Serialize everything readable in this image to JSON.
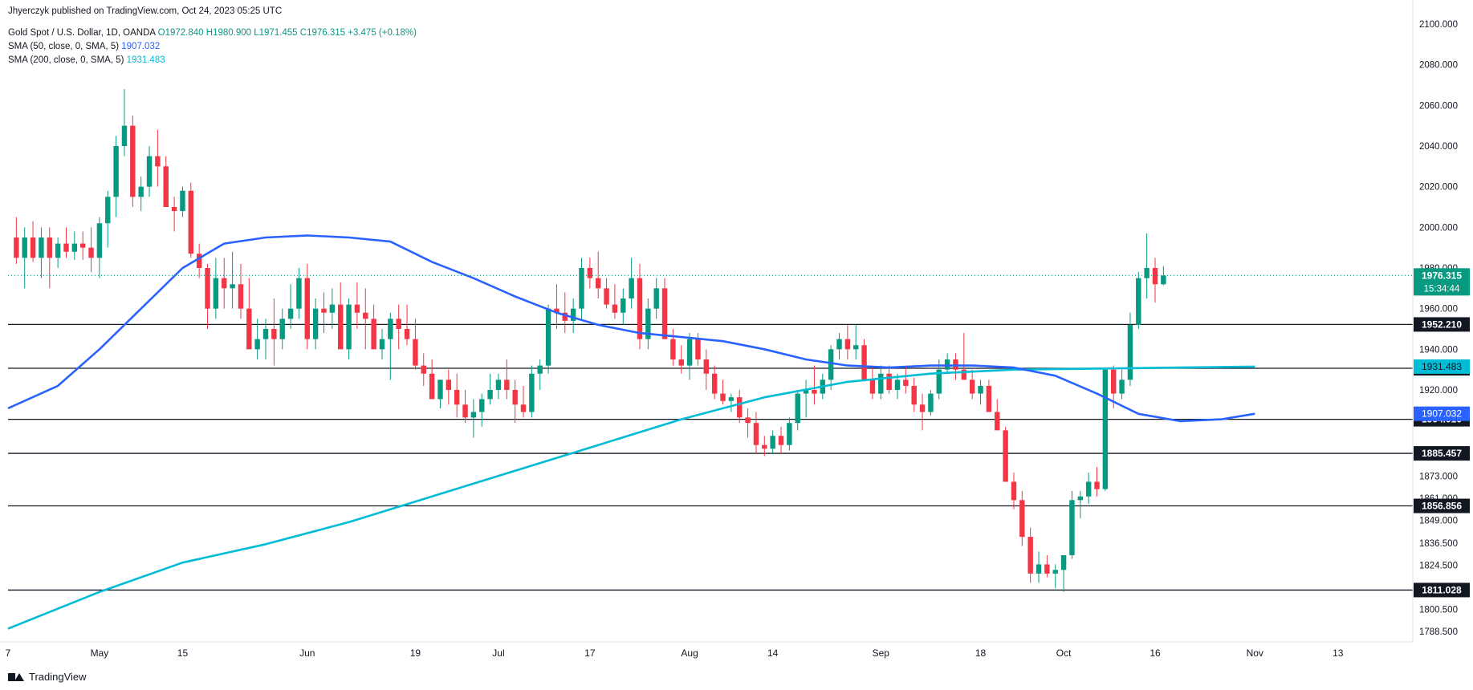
{
  "header": {
    "publisher": "Jhyerczyk published on TradingView.com, Oct 24, 2023 05:25 UTC",
    "symbol": "Gold Spot / U.S. Dollar, 1D, OANDA",
    "ohlc": "O1972.840  H1980.900  L1971.455  C1976.315  +3.475 (+0.18%)",
    "sma50_label": "SMA (50, close, 0, SMA, 5)",
    "sma50_value": "1907.032",
    "sma200_label": "SMA (200, close, 0, SMA, 5)",
    "sma200_value": "1931.483"
  },
  "footer": {
    "brand": "TradingView"
  },
  "colors": {
    "up": "#089981",
    "down": "#f23645",
    "sma50": "#2962ff",
    "sma200": "#00bcd4",
    "current": "#089981",
    "hline": "#131722"
  },
  "chart_data": {
    "type": "candlestick",
    "y_axis": {
      "min": 1785,
      "max": 2105,
      "tick_labels": [
        "2100.000",
        "2080.000",
        "2060.000",
        "2040.000",
        "2020.000",
        "2000.000",
        "1980.000",
        "1960.000",
        "1940.000",
        "1920.000",
        "1873.000",
        "1861.000",
        "1849.000",
        "1836.500",
        "1824.500",
        "1800.500",
        "1788.500"
      ],
      "tick_values": [
        2100,
        2080,
        2060,
        2040,
        2020,
        2000,
        1980,
        1960,
        1940,
        1920,
        1873,
        1861,
        1849,
        1836.5,
        1824.5,
        1800.5,
        1788.5
      ]
    },
    "x_axis": {
      "labels": [
        {
          "label": "7",
          "index": -1
        },
        {
          "label": "May",
          "index": 10
        },
        {
          "label": "15",
          "index": 20
        },
        {
          "label": "Jun",
          "index": 35
        },
        {
          "label": "19",
          "index": 48
        },
        {
          "label": "Jul",
          "index": 58
        },
        {
          "label": "17",
          "index": 69
        },
        {
          "label": "Aug",
          "index": 81
        },
        {
          "label": "14",
          "index": 91
        },
        {
          "label": "Sep",
          "index": 104
        },
        {
          "label": "18",
          "index": 116
        },
        {
          "label": "Oct",
          "index": 126
        },
        {
          "label": "16",
          "index": 137
        },
        {
          "label": "Nov",
          "index": 149
        },
        {
          "label": "13",
          "index": 159
        }
      ],
      "index_count": 169
    },
    "horizontal_levels": [
      {
        "label": "1952.210",
        "value": 1952.21
      },
      {
        "label": "1930.644",
        "value": 1930.644
      },
      {
        "label": "1904.010",
        "value": 1904.01
      },
      {
        "label": "1885.457",
        "value": 1885.457
      },
      {
        "label": "1856.856",
        "value": 1856.856
      },
      {
        "label": "1811.028",
        "value": 1811.028
      }
    ],
    "current_price": {
      "label": "1976.315",
      "countdown": "15:34:44",
      "value": 1976.315
    },
    "sma50_marker": {
      "label": "1907.032",
      "value": 1907.032
    },
    "sma200_marker": {
      "label": "1931.483",
      "value": 1931.483
    },
    "candles": [
      [
        1995,
        2005,
        1982,
        1985
      ],
      [
        1985,
        2000,
        1970,
        1995
      ],
      [
        1995,
        2003,
        1983,
        1985
      ],
      [
        1985,
        2000,
        1975,
        1995
      ],
      [
        1995,
        2000,
        1970,
        1985
      ],
      [
        1985,
        1995,
        1980,
        1992
      ],
      [
        1992,
        2000,
        1985,
        1988
      ],
      [
        1988,
        1998,
        1984,
        1992
      ],
      [
        1992,
        1998,
        1984,
        1990
      ],
      [
        1990,
        2000,
        1978,
        1985
      ],
      [
        1985,
        2005,
        1975,
        2002
      ],
      [
        2002,
        2018,
        1990,
        2015
      ],
      [
        2015,
        2045,
        2005,
        2040
      ],
      [
        2040,
        2068,
        2035,
        2050
      ],
      [
        2050,
        2055,
        2010,
        2015
      ],
      [
        2015,
        2025,
        2008,
        2020
      ],
      [
        2020,
        2040,
        2015,
        2035
      ],
      [
        2035,
        2048,
        2020,
        2030
      ],
      [
        2030,
        2035,
        2010,
        2010
      ],
      [
        2010,
        2015,
        1998,
        2008
      ],
      [
        2008,
        2020,
        2005,
        2018
      ],
      [
        2018,
        2022,
        1985,
        1987
      ],
      [
        1987,
        1992,
        1975,
        1980
      ],
      [
        1980,
        1982,
        1950,
        1960
      ],
      [
        1960,
        1985,
        1955,
        1975
      ],
      [
        1975,
        1985,
        1960,
        1970
      ],
      [
        1970,
        1988,
        1960,
        1972
      ],
      [
        1972,
        1982,
        1955,
        1960
      ],
      [
        1960,
        1975,
        1940,
        1940
      ],
      [
        1940,
        1955,
        1935,
        1945
      ],
      [
        1945,
        1955,
        1935,
        1950
      ],
      [
        1950,
        1965,
        1932,
        1945
      ],
      [
        1945,
        1960,
        1940,
        1955
      ],
      [
        1955,
        1972,
        1950,
        1960
      ],
      [
        1960,
        1980,
        1955,
        1975
      ],
      [
        1975,
        1982,
        1940,
        1945
      ],
      [
        1945,
        1965,
        1940,
        1960
      ],
      [
        1960,
        1968,
        1948,
        1958
      ],
      [
        1958,
        1970,
        1950,
        1962
      ],
      [
        1962,
        1973,
        1940,
        1940
      ],
      [
        1940,
        1965,
        1935,
        1962
      ],
      [
        1962,
        1973,
        1950,
        1958
      ],
      [
        1958,
        1970,
        1940,
        1955
      ],
      [
        1955,
        1962,
        1940,
        1940
      ],
      [
        1940,
        1950,
        1935,
        1945
      ],
      [
        1945,
        1958,
        1925,
        1955
      ],
      [
        1955,
        1962,
        1940,
        1950
      ],
      [
        1950,
        1962,
        1942,
        1945
      ],
      [
        1945,
        1955,
        1930,
        1932
      ],
      [
        1932,
        1938,
        1922,
        1928
      ],
      [
        1928,
        1935,
        1915,
        1915
      ],
      [
        1915,
        1925,
        1910,
        1925
      ],
      [
        1925,
        1930,
        1912,
        1920
      ],
      [
        1920,
        1928,
        1905,
        1912
      ],
      [
        1912,
        1920,
        1902,
        1905
      ],
      [
        1905,
        1915,
        1894,
        1908
      ],
      [
        1908,
        1918,
        1900,
        1915
      ],
      [
        1915,
        1928,
        1912,
        1920
      ],
      [
        1920,
        1928,
        1915,
        1925
      ],
      [
        1925,
        1935,
        1915,
        1920
      ],
      [
        1920,
        1925,
        1902,
        1912
      ],
      [
        1912,
        1922,
        1905,
        1908
      ],
      [
        1908,
        1932,
        1905,
        1928
      ],
      [
        1928,
        1935,
        1920,
        1932
      ],
      [
        1932,
        1962,
        1928,
        1960
      ],
      [
        1960,
        1972,
        1950,
        1958
      ],
      [
        1958,
        1968,
        1948,
        1954
      ],
      [
        1954,
        1965,
        1948,
        1960
      ],
      [
        1960,
        1985,
        1955,
        1980
      ],
      [
        1980,
        1985,
        1970,
        1975
      ],
      [
        1975,
        1988,
        1965,
        1970
      ],
      [
        1970,
        1975,
        1960,
        1962
      ],
      [
        1962,
        1972,
        1955,
        1958
      ],
      [
        1958,
        1970,
        1952,
        1965
      ],
      [
        1965,
        1985,
        1960,
        1975
      ],
      [
        1975,
        1982,
        1940,
        1945
      ],
      [
        1945,
        1965,
        1940,
        1960
      ],
      [
        1960,
        1975,
        1955,
        1970
      ],
      [
        1970,
        1975,
        1945,
        1945
      ],
      [
        1945,
        1950,
        1932,
        1935
      ],
      [
        1935,
        1942,
        1928,
        1932
      ],
      [
        1932,
        1948,
        1925,
        1945
      ],
      [
        1945,
        1948,
        1932,
        1935
      ],
      [
        1935,
        1940,
        1920,
        1928
      ],
      [
        1928,
        1932,
        1915,
        1918
      ],
      [
        1918,
        1925,
        1912,
        1914
      ],
      [
        1914,
        1918,
        1908,
        1916
      ],
      [
        1916,
        1920,
        1902,
        1905
      ],
      [
        1905,
        1910,
        1894,
        1902
      ],
      [
        1902,
        1908,
        1885,
        1890
      ],
      [
        1890,
        1895,
        1884,
        1888
      ],
      [
        1888,
        1898,
        1885,
        1895
      ],
      [
        1895,
        1900,
        1885,
        1890
      ],
      [
        1890,
        1905,
        1887,
        1902
      ],
      [
        1902,
        1920,
        1898,
        1918
      ],
      [
        1918,
        1925,
        1905,
        1920
      ],
      [
        1920,
        1932,
        1912,
        1918
      ],
      [
        1918,
        1928,
        1915,
        1925
      ],
      [
        1925,
        1942,
        1920,
        1940
      ],
      [
        1940,
        1948,
        1935,
        1945
      ],
      [
        1945,
        1952,
        1935,
        1940
      ],
      [
        1940,
        1952,
        1935,
        1942
      ],
      [
        1942,
        1945,
        1925,
        1925
      ],
      [
        1925,
        1932,
        1915,
        1918
      ],
      [
        1918,
        1932,
        1915,
        1928
      ],
      [
        1928,
        1932,
        1918,
        1920
      ],
      [
        1920,
        1928,
        1915,
        1925
      ],
      [
        1925,
        1932,
        1918,
        1922
      ],
      [
        1922,
        1926,
        1908,
        1912
      ],
      [
        1912,
        1918,
        1898,
        1908
      ],
      [
        1908,
        1920,
        1906,
        1918
      ],
      [
        1918,
        1935,
        1915,
        1930
      ],
      [
        1930,
        1938,
        1928,
        1935
      ],
      [
        1935,
        1938,
        1925,
        1930
      ],
      [
        1930,
        1948,
        1925,
        1925
      ],
      [
        1925,
        1930,
        1915,
        1918
      ],
      [
        1918,
        1925,
        1912,
        1922
      ],
      [
        1922,
        1925,
        1908,
        1908
      ],
      [
        1908,
        1915,
        1898,
        1898
      ],
      [
        1898,
        1900,
        1870,
        1870
      ],
      [
        1870,
        1875,
        1855,
        1860
      ],
      [
        1860,
        1865,
        1835,
        1840
      ],
      [
        1840,
        1845,
        1815,
        1820
      ],
      [
        1820,
        1832,
        1815,
        1825
      ],
      [
        1825,
        1830,
        1818,
        1820
      ],
      [
        1820,
        1825,
        1812,
        1822
      ],
      [
        1822,
        1830,
        1810,
        1830
      ],
      [
        1830,
        1865,
        1828,
        1860
      ],
      [
        1860,
        1865,
        1850,
        1862
      ],
      [
        1862,
        1875,
        1858,
        1870
      ],
      [
        1870,
        1878,
        1862,
        1866
      ],
      [
        1866,
        1930,
        1865,
        1930
      ],
      [
        1930,
        1932,
        1910,
        1918
      ],
      [
        1918,
        1930,
        1915,
        1925
      ],
      [
        1925,
        1958,
        1922,
        1952
      ],
      [
        1952,
        1978,
        1950,
        1975
      ],
      [
        1975,
        1997,
        1965,
        1980
      ],
      [
        1980,
        1985,
        1963,
        1972
      ],
      [
        1972,
        1980.9,
        1971.455,
        1976.315
      ]
    ],
    "sma50": [
      [
        -1,
        1910
      ],
      [
        5,
        1922
      ],
      [
        10,
        1940
      ],
      [
        15,
        1960
      ],
      [
        20,
        1980
      ],
      [
        25,
        1992
      ],
      [
        30,
        1995
      ],
      [
        35,
        1996
      ],
      [
        40,
        1995
      ],
      [
        45,
        1993
      ],
      [
        50,
        1983
      ],
      [
        55,
        1975
      ],
      [
        60,
        1966
      ],
      [
        65,
        1958
      ],
      [
        70,
        1952
      ],
      [
        75,
        1948
      ],
      [
        80,
        1946
      ],
      [
        85,
        1944
      ],
      [
        90,
        1940
      ],
      [
        95,
        1935
      ],
      [
        100,
        1932
      ],
      [
        105,
        1931
      ],
      [
        110,
        1932
      ],
      [
        115,
        1932
      ],
      [
        120,
        1931
      ],
      [
        125,
        1927
      ],
      [
        130,
        1918
      ],
      [
        135,
        1907
      ],
      [
        140,
        1903
      ],
      [
        145,
        1904
      ],
      [
        149,
        1907.032
      ]
    ],
    "sma200": [
      [
        -1,
        1790
      ],
      [
        10,
        1810
      ],
      [
        20,
        1826
      ],
      [
        30,
        1836
      ],
      [
        40,
        1848
      ],
      [
        50,
        1862
      ],
      [
        60,
        1876
      ],
      [
        70,
        1890
      ],
      [
        80,
        1904
      ],
      [
        90,
        1916
      ],
      [
        100,
        1924
      ],
      [
        110,
        1928
      ],
      [
        120,
        1930
      ],
      [
        130,
        1930.5
      ],
      [
        140,
        1931
      ],
      [
        149,
        1931.483
      ]
    ]
  }
}
